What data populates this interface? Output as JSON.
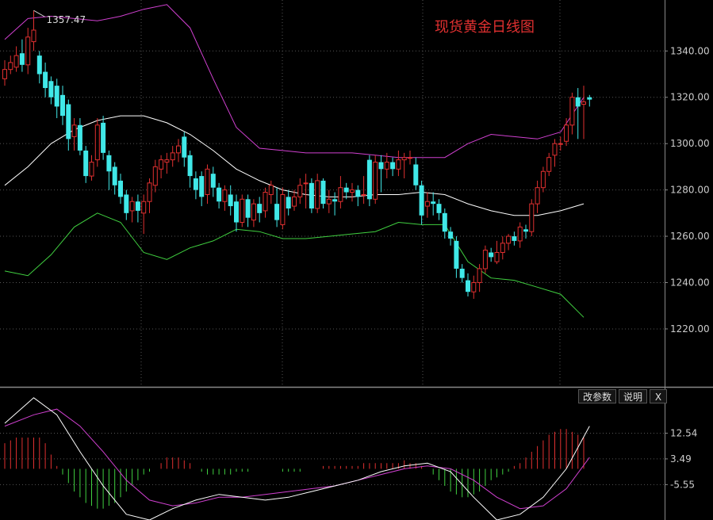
{
  "title": "现货黄金日线图",
  "buttons": {
    "params": "改参数",
    "help": "说明",
    "close": "X"
  },
  "colors": {
    "up": "#e03030",
    "down": "#40e8e8",
    "mid": "#ffffff",
    "upper": "#d040d0",
    "lower": "#40d040",
    "title": "#e03030",
    "grid": "#555555"
  },
  "chart_data": [
    {
      "type": "candlestick",
      "title": "现货黄金日线图",
      "y_ticks": [
        "1340.00",
        "1320.00",
        "1300.00",
        "1280.00",
        "1260.00",
        "1240.00",
        "1220.00"
      ],
      "ylim": [
        1195,
        1362
      ],
      "annotation": {
        "label": "1357.47",
        "value": 1357.47,
        "index": 5
      },
      "candles": [
        [
          1328,
          1332,
          1325,
          1336
        ],
        [
          1332,
          1335,
          1330,
          1338
        ],
        [
          1333,
          1338,
          1331,
          1342
        ],
        [
          1339,
          1334,
          1331,
          1345
        ],
        [
          1334,
          1346,
          1330,
          1350
        ],
        [
          1344,
          1349,
          1340,
          1357.47
        ],
        [
          1338,
          1330,
          1326,
          1340
        ],
        [
          1331,
          1324,
          1320,
          1335
        ],
        [
          1327,
          1320,
          1317,
          1329
        ],
        [
          1325,
          1316,
          1311,
          1328
        ],
        [
          1321,
          1312,
          1308,
          1325
        ],
        [
          1317,
          1302,
          1297,
          1319
        ],
        [
          1303,
          1308,
          1297,
          1311
        ],
        [
          1308,
          1297,
          1295,
          1311
        ],
        [
          1297,
          1286,
          1283,
          1299
        ],
        [
          1286,
          1292,
          1284,
          1295
        ],
        [
          1293,
          1308,
          1290,
          1311
        ],
        [
          1309,
          1296,
          1293,
          1312
        ],
        [
          1295,
          1288,
          1280,
          1297
        ],
        [
          1290,
          1282,
          1278,
          1292
        ],
        [
          1284,
          1277,
          1274,
          1287
        ],
        [
          1278,
          1270,
          1267,
          1280
        ],
        [
          1271,
          1275,
          1266,
          1277
        ],
        [
          1275,
          1271,
          1266,
          1278
        ],
        [
          1270,
          1275,
          1261,
          1278
        ],
        [
          1275,
          1283,
          1270,
          1285
        ],
        [
          1282,
          1290,
          1279,
          1293
        ],
        [
          1289,
          1293,
          1285,
          1295
        ],
        [
          1292,
          1293,
          1287,
          1296
        ],
        [
          1293,
          1296,
          1290,
          1299
        ],
        [
          1296,
          1299,
          1292,
          1302
        ],
        [
          1303,
          1294,
          1290,
          1305
        ],
        [
          1295,
          1286,
          1281,
          1297
        ],
        [
          1285,
          1280,
          1276,
          1288
        ],
        [
          1286,
          1277,
          1273,
          1288
        ],
        [
          1278,
          1289,
          1274,
          1291
        ],
        [
          1287,
          1281,
          1277,
          1290
        ],
        [
          1281,
          1275,
          1272,
          1283
        ],
        [
          1275,
          1280,
          1271,
          1282
        ],
        [
          1278,
          1273,
          1269,
          1282
        ],
        [
          1275,
          1266,
          1262,
          1278
        ],
        [
          1266,
          1276,
          1264,
          1278
        ],
        [
          1276,
          1268,
          1264,
          1278
        ],
        [
          1267,
          1274,
          1264,
          1276
        ],
        [
          1274,
          1270,
          1266,
          1277
        ],
        [
          1271,
          1279,
          1268,
          1281
        ],
        [
          1278,
          1282,
          1274,
          1284
        ],
        [
          1274,
          1267,
          1264,
          1281
        ],
        [
          1265,
          1278,
          1263,
          1281
        ],
        [
          1277,
          1272,
          1269,
          1280
        ],
        [
          1273,
          1277,
          1271,
          1280
        ],
        [
          1277,
          1282,
          1274,
          1285
        ],
        [
          1283,
          1283,
          1272,
          1287
        ],
        [
          1283,
          1272,
          1270,
          1285
        ],
        [
          1272,
          1284,
          1270,
          1287
        ],
        [
          1284,
          1274,
          1272,
          1285
        ],
        [
          1274,
          1276,
          1270,
          1280
        ],
        [
          1276,
          1275,
          1269,
          1279
        ],
        [
          1275,
          1281,
          1272,
          1286
        ],
        [
          1281,
          1279,
          1276,
          1283
        ],
        [
          1279,
          1280,
          1275,
          1283
        ],
        [
          1280,
          1277,
          1273,
          1282
        ],
        [
          1278,
          1278,
          1274,
          1286
        ],
        [
          1293,
          1276,
          1273,
          1295
        ],
        [
          1276,
          1292,
          1274,
          1295
        ],
        [
          1292,
          1289,
          1279,
          1295
        ],
        [
          1289,
          1292,
          1285,
          1296
        ],
        [
          1292,
          1289,
          1286,
          1294
        ],
        [
          1289,
          1293,
          1286,
          1297
        ],
        [
          1293,
          1294,
          1285,
          1296
        ],
        [
          1294,
          1294,
          1291,
          1297
        ],
        [
          1291,
          1282,
          1280,
          1294
        ],
        [
          1282,
          1269,
          1265,
          1284
        ],
        [
          1273,
          1275,
          1268,
          1279
        ],
        [
          1275,
          1274,
          1269,
          1279
        ],
        [
          1274,
          1270,
          1267,
          1276
        ],
        [
          1270,
          1262,
          1259,
          1272
        ],
        [
          1262,
          1259,
          1256,
          1264
        ],
        [
          1258,
          1246,
          1242,
          1260
        ],
        [
          1246,
          1242,
          1240,
          1248
        ],
        [
          1241,
          1236,
          1234,
          1244
        ],
        [
          1236,
          1240,
          1233,
          1243
        ],
        [
          1240,
          1246,
          1236,
          1248
        ],
        [
          1246,
          1254,
          1244,
          1256
        ],
        [
          1253,
          1251,
          1249,
          1255
        ],
        [
          1249,
          1253,
          1248,
          1258
        ],
        [
          1253,
          1257,
          1250,
          1260
        ],
        [
          1257,
          1260,
          1254,
          1261
        ],
        [
          1260,
          1258,
          1256,
          1262
        ],
        [
          1258,
          1264,
          1255,
          1266
        ],
        [
          1263,
          1262,
          1259,
          1265
        ],
        [
          1262,
          1274,
          1260,
          1276
        ],
        [
          1274,
          1281,
          1270,
          1284
        ],
        [
          1281,
          1288,
          1279,
          1290
        ],
        [
          1288,
          1294,
          1286,
          1296
        ],
        [
          1295,
          1300,
          1290,
          1302
        ],
        [
          1300,
          1300,
          1297,
          1303
        ],
        [
          1301,
          1308,
          1299,
          1311
        ],
        [
          1308,
          1320,
          1304,
          1322
        ],
        [
          1320,
          1316,
          1302,
          1324
        ],
        [
          1317,
          1318,
          1302,
          1325
        ],
        [
          1320,
          1319,
          1316,
          1321
        ]
      ],
      "bollinger": {
        "middle": [
          [
            0,
            1282
          ],
          [
            4,
            1290
          ],
          [
            8,
            1300
          ],
          [
            12,
            1306
          ],
          [
            16,
            1310
          ],
          [
            20,
            1312
          ],
          [
            24,
            1312
          ],
          [
            28,
            1309
          ],
          [
            32,
            1304
          ],
          [
            36,
            1297
          ],
          [
            40,
            1289
          ],
          [
            44,
            1284
          ],
          [
            48,
            1280
          ],
          [
            52,
            1278
          ],
          [
            56,
            1277
          ],
          [
            60,
            1277
          ],
          [
            64,
            1278
          ],
          [
            68,
            1278
          ],
          [
            72,
            1279
          ],
          [
            76,
            1278
          ],
          [
            80,
            1274
          ],
          [
            84,
            1271
          ],
          [
            88,
            1269
          ],
          [
            92,
            1269
          ],
          [
            96,
            1271
          ],
          [
            100,
            1274
          ]
        ],
        "upper": [
          [
            0,
            1345
          ],
          [
            4,
            1354
          ],
          [
            8,
            1355
          ],
          [
            12,
            1354
          ],
          [
            16,
            1353
          ],
          [
            20,
            1355
          ],
          [
            24,
            1358
          ],
          [
            28,
            1360
          ],
          [
            32,
            1350
          ],
          [
            36,
            1328
          ],
          [
            40,
            1307
          ],
          [
            44,
            1298
          ],
          [
            48,
            1297
          ],
          [
            52,
            1296
          ],
          [
            56,
            1296
          ],
          [
            60,
            1296
          ],
          [
            64,
            1295
          ],
          [
            68,
            1294
          ],
          [
            72,
            1294
          ],
          [
            76,
            1294
          ],
          [
            80,
            1300
          ],
          [
            84,
            1304
          ],
          [
            88,
            1303
          ],
          [
            92,
            1302
          ],
          [
            96,
            1305
          ],
          [
            100,
            1320
          ]
        ],
        "lower": [
          [
            0,
            1245
          ],
          [
            4,
            1243
          ],
          [
            8,
            1252
          ],
          [
            12,
            1264
          ],
          [
            16,
            1270
          ],
          [
            20,
            1266
          ],
          [
            24,
            1253
          ],
          [
            28,
            1250
          ],
          [
            32,
            1255
          ],
          [
            36,
            1258
          ],
          [
            40,
            1263
          ],
          [
            44,
            1262
          ],
          [
            48,
            1259
          ],
          [
            52,
            1259
          ],
          [
            56,
            1260
          ],
          [
            60,
            1261
          ],
          [
            64,
            1262
          ],
          [
            68,
            1266
          ],
          [
            72,
            1265
          ],
          [
            76,
            1265
          ],
          [
            80,
            1249
          ],
          [
            84,
            1242
          ],
          [
            88,
            1241
          ],
          [
            92,
            1238
          ],
          [
            96,
            1235
          ],
          [
            100,
            1225
          ]
        ]
      }
    },
    {
      "type": "macd",
      "y_ticks": [
        "12.54",
        "3.49",
        "-5.55"
      ],
      "ylim": [
        -18,
        28
      ],
      "dif": [
        [
          0,
          16
        ],
        [
          5,
          25
        ],
        [
          9,
          19
        ],
        [
          13,
          6
        ],
        [
          17,
          -6
        ],
        [
          21,
          -16
        ],
        [
          25,
          -18
        ],
        [
          29,
          -14
        ],
        [
          33,
          -11
        ],
        [
          37,
          -9
        ],
        [
          41,
          -10
        ],
        [
          45,
          -11
        ],
        [
          49,
          -10
        ],
        [
          53,
          -8
        ],
        [
          57,
          -6
        ],
        [
          61,
          -4
        ],
        [
          65,
          -1
        ],
        [
          69,
          1
        ],
        [
          73,
          2
        ],
        [
          77,
          -1
        ],
        [
          81,
          -10
        ],
        [
          85,
          -18
        ],
        [
          89,
          -16
        ],
        [
          93,
          -10
        ],
        [
          97,
          0
        ],
        [
          101,
          15
        ]
      ],
      "dea": [
        [
          0,
          15
        ],
        [
          5,
          19
        ],
        [
          9,
          21
        ],
        [
          13,
          15
        ],
        [
          17,
          6
        ],
        [
          21,
          -4
        ],
        [
          25,
          -11
        ],
        [
          29,
          -13
        ],
        [
          33,
          -12
        ],
        [
          37,
          -10
        ],
        [
          41,
          -10
        ],
        [
          45,
          -9
        ],
        [
          49,
          -8
        ],
        [
          53,
          -7
        ],
        [
          57,
          -6
        ],
        [
          61,
          -4
        ],
        [
          65,
          -2
        ],
        [
          69,
          0
        ],
        [
          73,
          1
        ],
        [
          77,
          0
        ],
        [
          81,
          -4
        ],
        [
          85,
          -10
        ],
        [
          89,
          -14
        ],
        [
          93,
          -13
        ],
        [
          97,
          -7
        ],
        [
          101,
          4
        ]
      ],
      "hist": [
        9,
        10,
        11,
        11,
        11,
        11,
        11,
        9,
        5,
        1,
        -2,
        -5,
        -8,
        -10,
        -12,
        -13,
        -14,
        -14,
        -13,
        -12,
        -10,
        -8,
        -6,
        -4,
        -2,
        -1,
        0,
        2,
        4,
        4,
        4,
        3,
        2,
        0,
        -1,
        -2,
        -2,
        -2,
        -2,
        -2,
        -1,
        -1,
        -1,
        0,
        0,
        0,
        0,
        0,
        -1,
        -1,
        -1,
        -1,
        0,
        0,
        0,
        1,
        1,
        1,
        1,
        1,
        1,
        1,
        2,
        2,
        2,
        2,
        2,
        2,
        2,
        3,
        2,
        2,
        1,
        0,
        -2,
        -4,
        -6,
        -8,
        -9,
        -10,
        -10,
        -9,
        -8,
        -6,
        -4,
        -3,
        -2,
        -1,
        1,
        2,
        4,
        6,
        8,
        10,
        12,
        13,
        14,
        14,
        13,
        12,
        11
      ]
    }
  ]
}
